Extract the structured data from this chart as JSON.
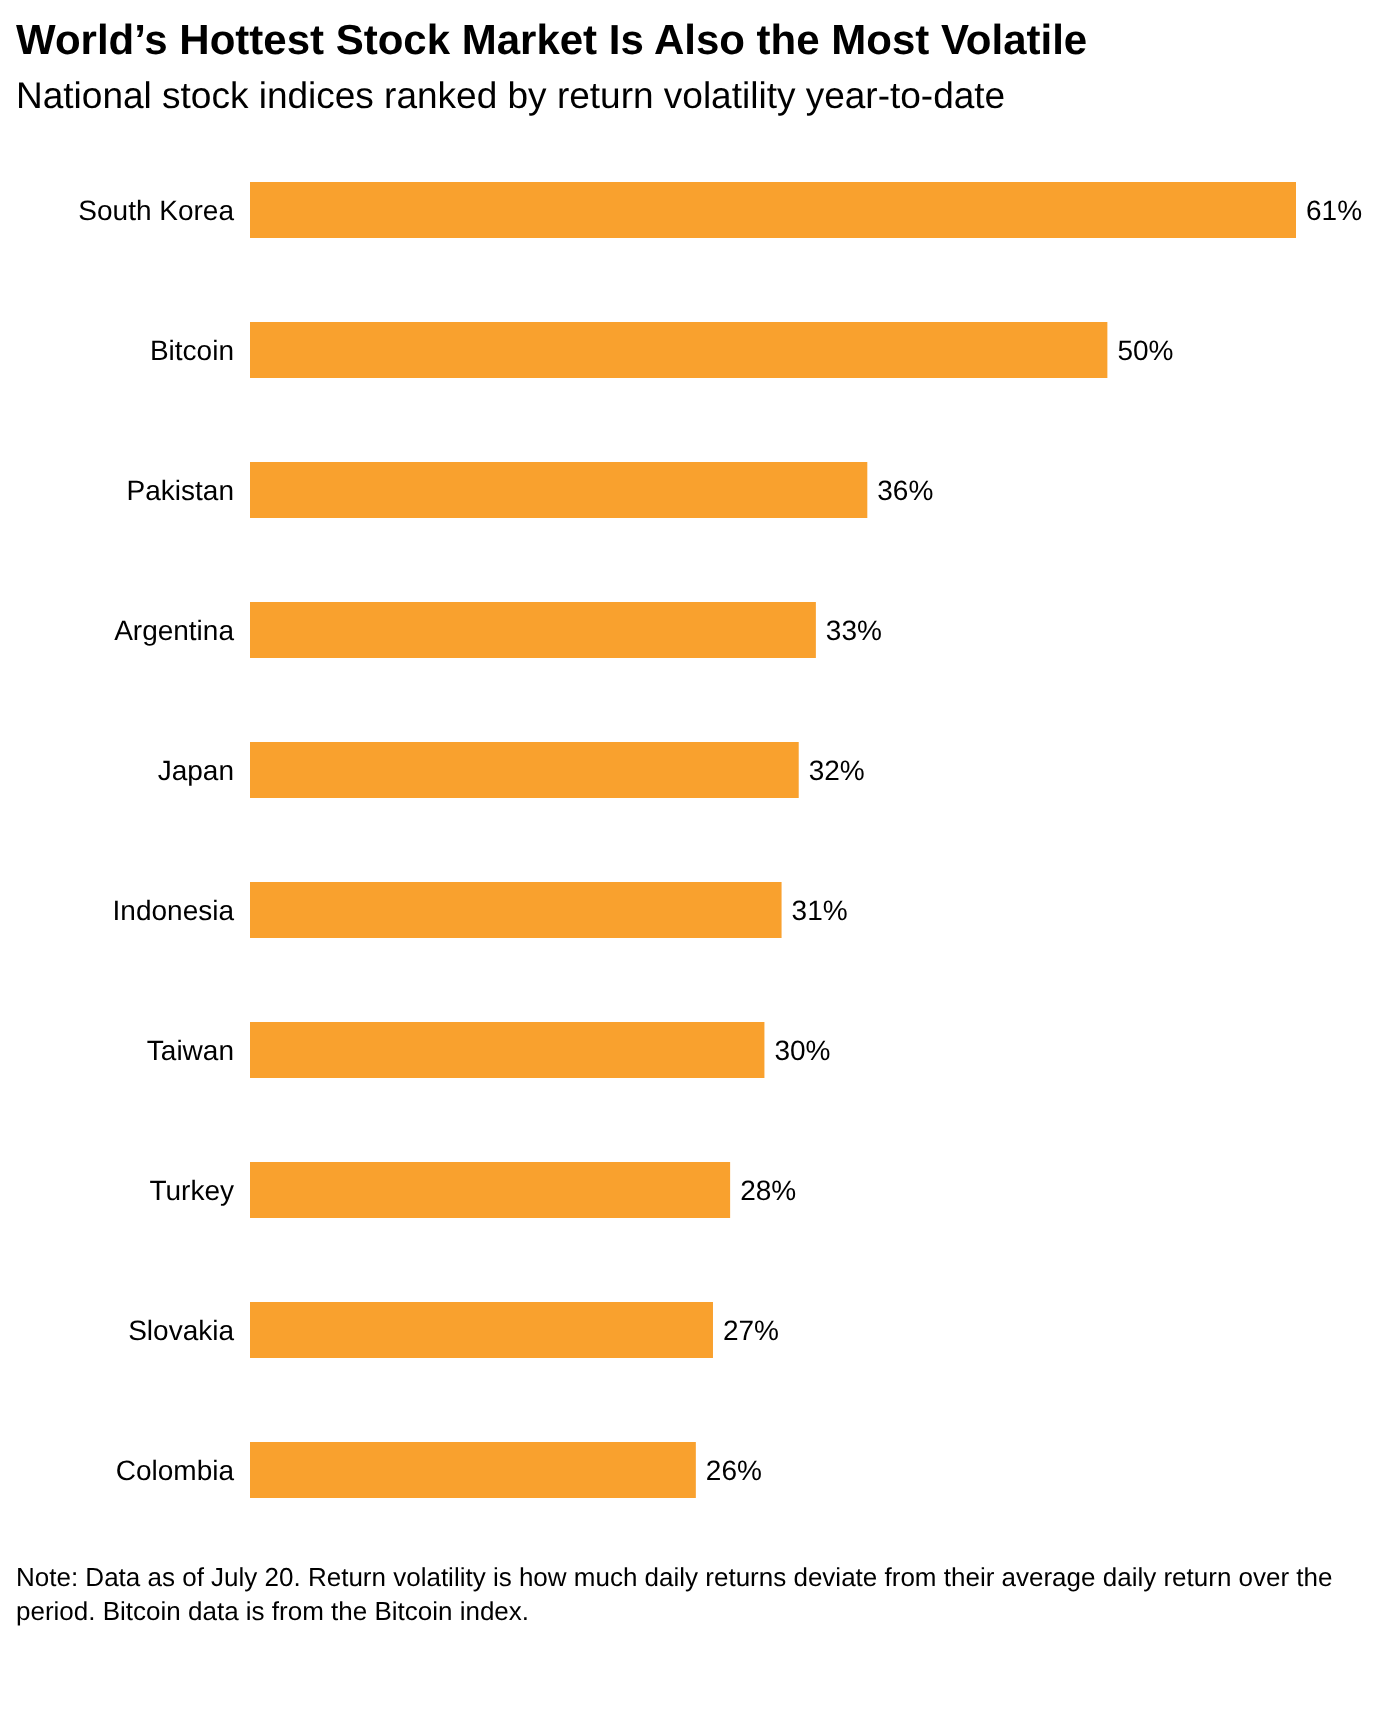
{
  "chart_data": {
    "type": "bar",
    "orientation": "horizontal",
    "title": "World’s Hottest Stock Market Is Also the Most Volatile",
    "subtitle": "National stock indices ranked by return volatility year-to-date",
    "categories": [
      "South Korea",
      "Bitcoin",
      "Pakistan",
      "Argentina",
      "Japan",
      "Indonesia",
      "Taiwan",
      "Turkey",
      "Slovakia",
      "Colombia"
    ],
    "values": [
      61,
      50,
      36,
      33,
      32,
      31,
      30,
      28,
      27,
      26
    ],
    "value_labels": [
      "61%",
      "50%",
      "36%",
      "33%",
      "32%",
      "31%",
      "30%",
      "28%",
      "27%",
      "26%"
    ],
    "color": "#f9a12e",
    "grid": false,
    "legend": false,
    "annotations": [
      "Note: Data as of July 20. Return volatility is how much daily returns deviate from their average daily return over the period. Bitcoin data is from the Bitcoin index."
    ]
  }
}
